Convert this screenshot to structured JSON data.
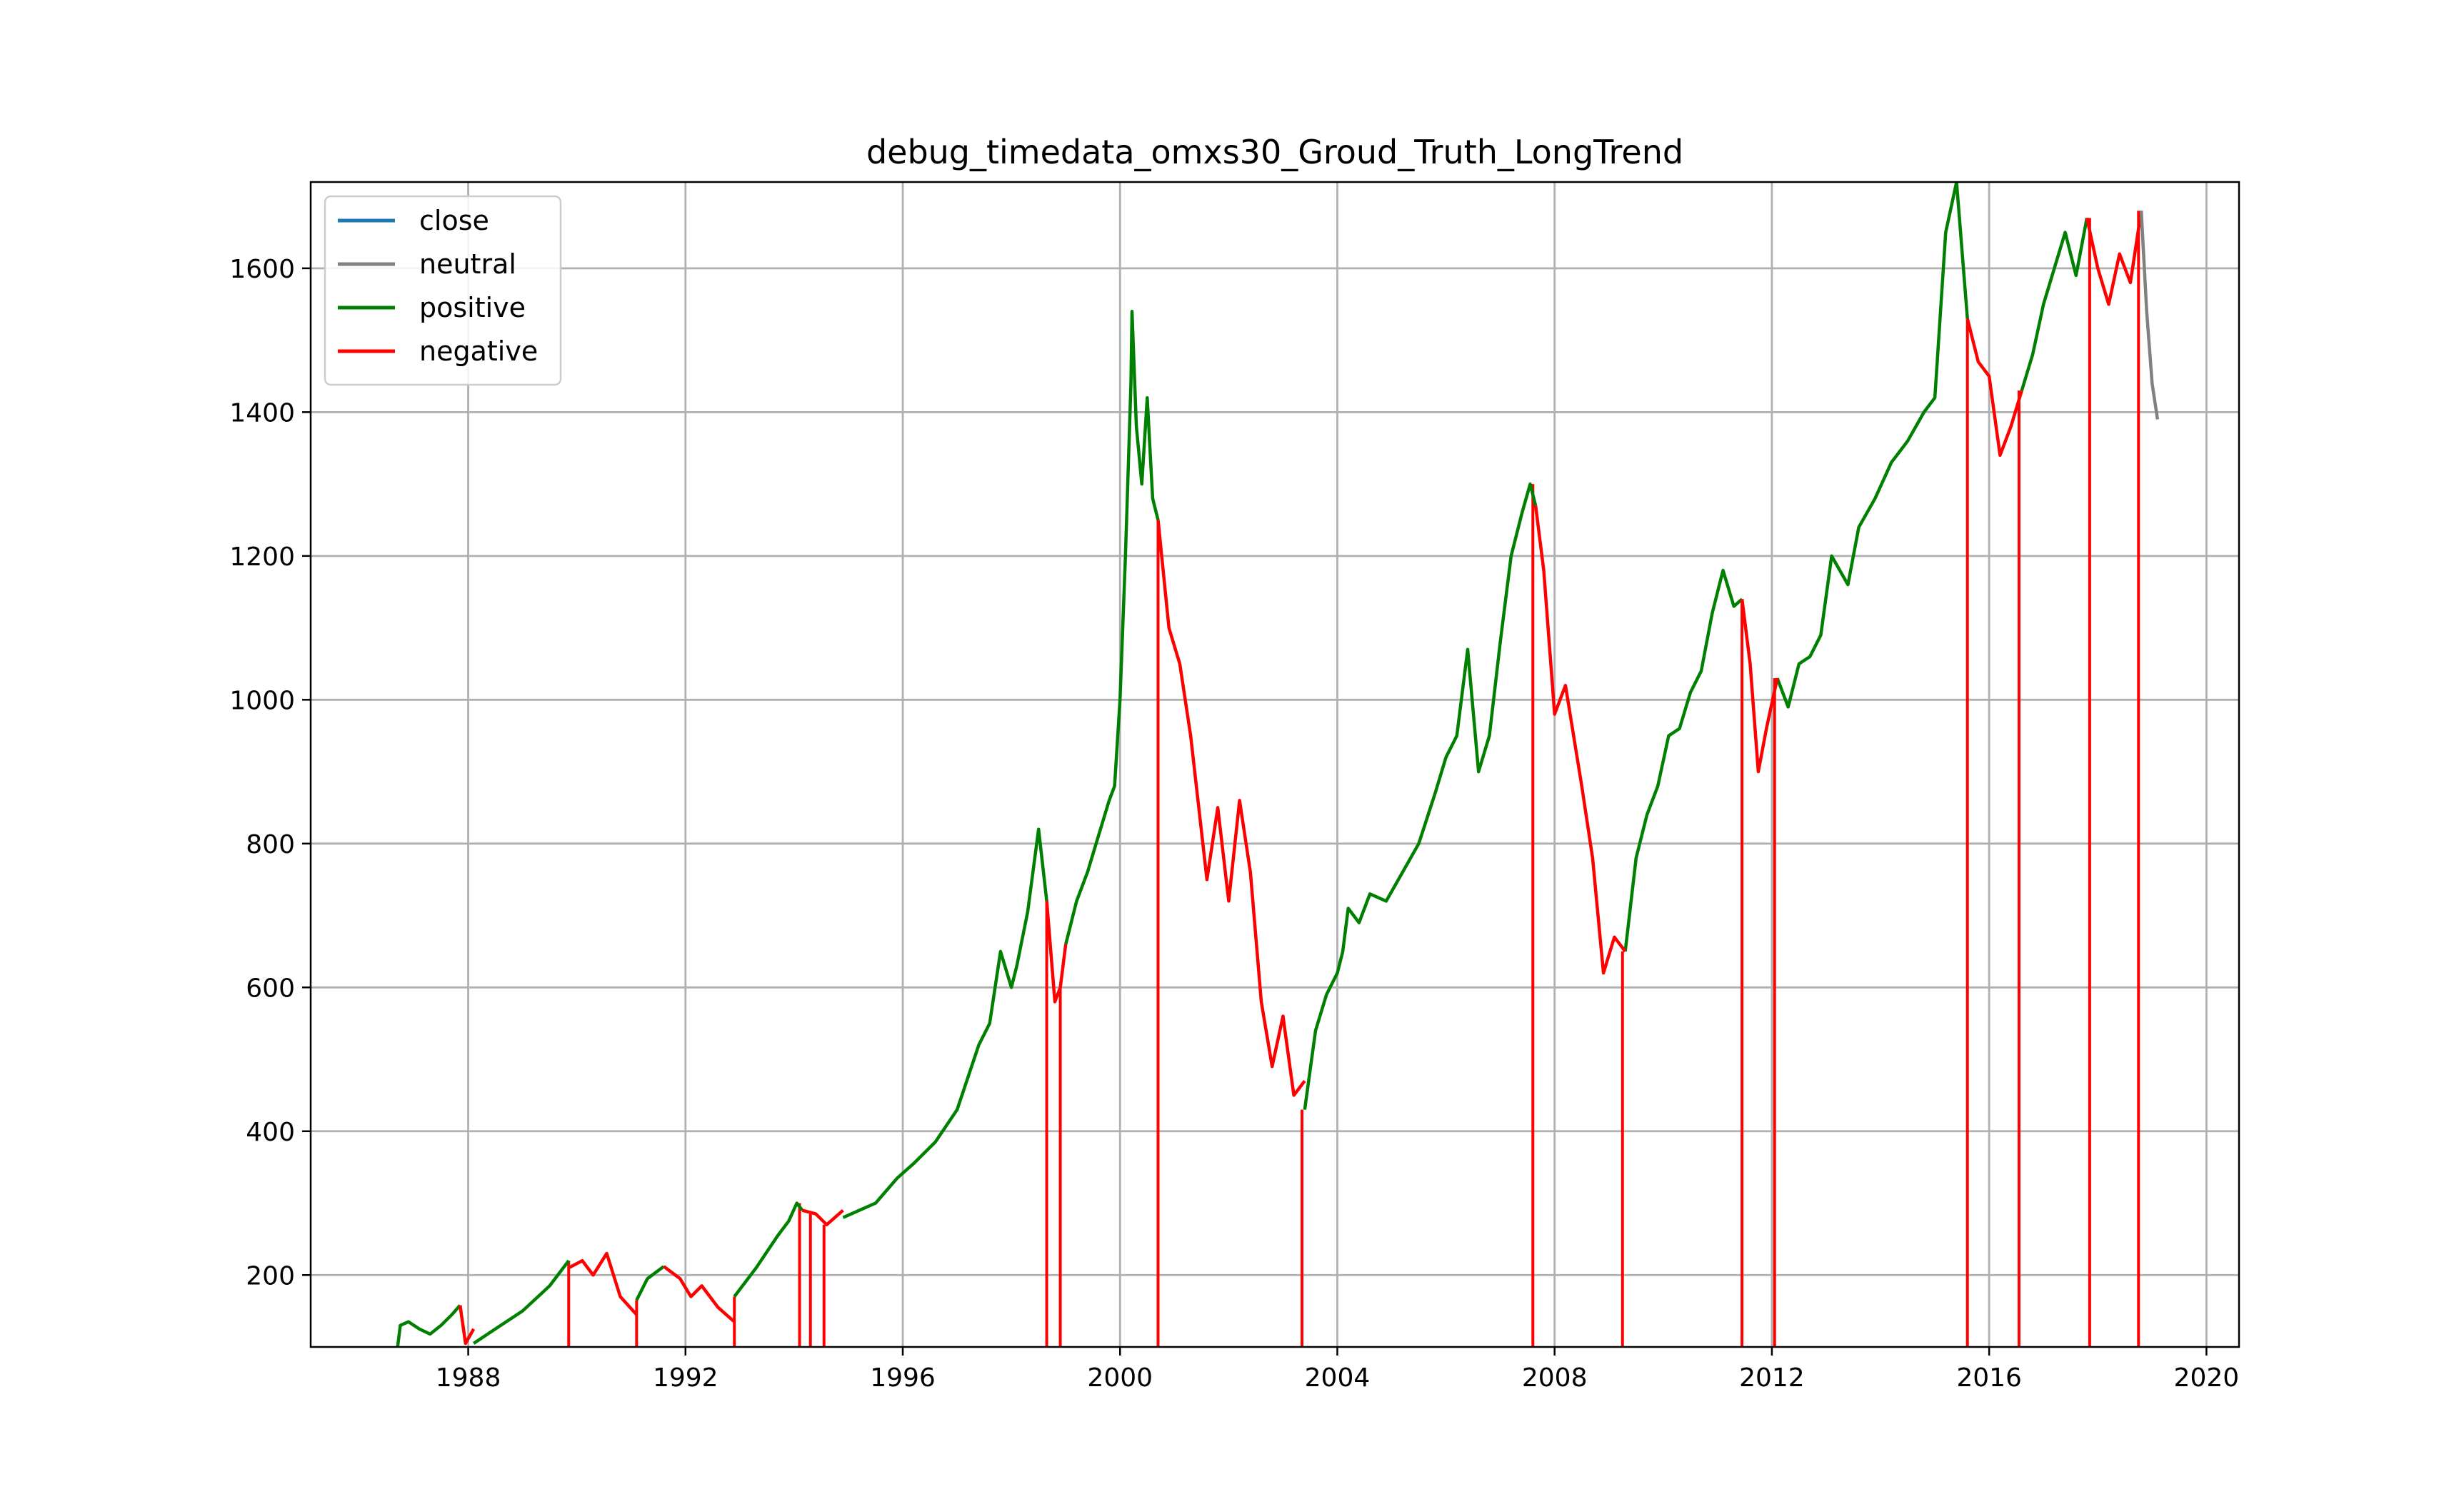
{
  "chart_data": {
    "type": "line",
    "title": "debug_timedata_omxs30_Groud_Truth_LongTrend",
    "xlabel": "",
    "ylabel": "",
    "xlim": [
      1985.1,
      2020.6
    ],
    "ylim": [
      100,
      1720
    ],
    "x_ticks": [
      1988,
      1992,
      1996,
      2000,
      2004,
      2008,
      2012,
      2016,
      2020
    ],
    "x_tick_labels": [
      "1988",
      "1992",
      "1996",
      "2000",
      "2004",
      "2008",
      "2012",
      "2016",
      "2020"
    ],
    "y_ticks": [
      200,
      400,
      600,
      800,
      1000,
      1200,
      1400,
      1600
    ],
    "y_tick_labels": [
      "200",
      "400",
      "600",
      "800",
      "1000",
      "1200",
      "1400",
      "1600"
    ],
    "grid": true,
    "legend_position": "top-left",
    "legend": [
      {
        "label": "close",
        "color": "#1f77b4"
      },
      {
        "label": "neutral",
        "color": "#808080"
      },
      {
        "label": "positive",
        "color": "#008000"
      },
      {
        "label": "negative",
        "color": "#ff0000"
      }
    ],
    "series": [
      {
        "name": "positive",
        "color": "#008000",
        "segments": [
          [
            [
              1986.7,
              100
            ],
            [
              1986.75,
              130
            ],
            [
              1986.9,
              135
            ],
            [
              1987.1,
              125
            ],
            [
              1987.3,
              118
            ],
            [
              1987.5,
              130
            ],
            [
              1987.7,
              145
            ],
            [
              1987.85,
              158
            ]
          ],
          [
            [
              1988.1,
              105
            ],
            [
              1988.5,
              125
            ],
            [
              1989.0,
              150
            ],
            [
              1989.5,
              185
            ],
            [
              1989.85,
              220
            ]
          ],
          [
            [
              1991.1,
              165
            ],
            [
              1991.3,
              195
            ],
            [
              1991.6,
              212
            ]
          ],
          [
            [
              1992.9,
              170
            ],
            [
              1993.3,
              210
            ],
            [
              1993.7,
              255
            ],
            [
              1993.9,
              275
            ],
            [
              1994.05,
              300
            ],
            [
              1994.15,
              290
            ]
          ],
          [
            [
              1994.9,
              280
            ],
            [
              1995.2,
              290
            ],
            [
              1995.5,
              300
            ],
            [
              1995.9,
              335
            ],
            [
              1996.2,
              355
            ],
            [
              1996.6,
              385
            ],
            [
              1997.0,
              430
            ],
            [
              1997.4,
              520
            ],
            [
              1997.6,
              550
            ],
            [
              1997.8,
              650
            ],
            [
              1998.0,
              600
            ],
            [
              1998.1,
              630
            ],
            [
              1998.3,
              705
            ],
            [
              1998.5,
              820
            ],
            [
              1998.65,
              720
            ]
          ],
          [
            [
              1999.0,
              660
            ],
            [
              1999.2,
              720
            ],
            [
              1999.4,
              760
            ],
            [
              1999.6,
              810
            ],
            [
              1999.8,
              860
            ],
            [
              1999.9,
              880
            ],
            [
              2000.0,
              1000
            ],
            [
              2000.1,
              1200
            ],
            [
              2000.2,
              1440
            ],
            [
              2000.22,
              1540
            ],
            [
              2000.3,
              1380
            ],
            [
              2000.4,
              1300
            ],
            [
              2000.5,
              1420
            ],
            [
              2000.6,
              1280
            ],
            [
              2000.7,
              1250
            ]
          ],
          [
            [
              2003.4,
              430
            ],
            [
              2003.6,
              540
            ],
            [
              2003.8,
              590
            ],
            [
              2004.0,
              620
            ],
            [
              2004.1,
              650
            ],
            [
              2004.2,
              710
            ],
            [
              2004.4,
              690
            ],
            [
              2004.6,
              730
            ],
            [
              2004.9,
              720
            ],
            [
              2005.2,
              760
            ],
            [
              2005.5,
              800
            ],
            [
              2005.8,
              870
            ],
            [
              2006.0,
              920
            ],
            [
              2006.2,
              950
            ],
            [
              2006.4,
              1070
            ],
            [
              2006.6,
              900
            ],
            [
              2006.8,
              950
            ],
            [
              2007.0,
              1080
            ],
            [
              2007.2,
              1200
            ],
            [
              2007.4,
              1260
            ],
            [
              2007.55,
              1300
            ],
            [
              2007.65,
              1270
            ]
          ],
          [
            [
              2009.3,
              650
            ],
            [
              2009.5,
              780
            ],
            [
              2009.7,
              840
            ],
            [
              2009.9,
              880
            ],
            [
              2010.1,
              950
            ],
            [
              2010.3,
              960
            ],
            [
              2010.5,
              1010
            ],
            [
              2010.7,
              1040
            ],
            [
              2010.9,
              1120
            ],
            [
              2011.1,
              1180
            ],
            [
              2011.3,
              1130
            ],
            [
              2011.45,
              1140
            ]
          ],
          [
            [
              2012.1,
              1030
            ],
            [
              2012.3,
              990
            ],
            [
              2012.5,
              1050
            ],
            [
              2012.7,
              1060
            ],
            [
              2012.9,
              1090
            ],
            [
              2013.1,
              1200
            ],
            [
              2013.4,
              1160
            ],
            [
              2013.6,
              1240
            ],
            [
              2013.9,
              1280
            ],
            [
              2014.2,
              1330
            ],
            [
              2014.5,
              1360
            ],
            [
              2014.8,
              1400
            ],
            [
              2015.0,
              1420
            ],
            [
              2015.2,
              1650
            ],
            [
              2015.4,
              1720
            ],
            [
              2015.6,
              1530
            ]
          ],
          [
            [
              2016.6,
              1430
            ],
            [
              2016.8,
              1480
            ],
            [
              2017.0,
              1550
            ],
            [
              2017.2,
              1600
            ],
            [
              2017.4,
              1650
            ],
            [
              2017.6,
              1590
            ],
            [
              2017.8,
              1670
            ]
          ]
        ]
      },
      {
        "name": "negative",
        "color": "#ff0000",
        "segments": [
          [
            [
              1987.85,
              158
            ],
            [
              1987.95,
              105
            ],
            [
              1988.1,
              125
            ]
          ],
          [
            [
              1989.85,
              210
            ],
            [
              1990.1,
              220
            ],
            [
              1990.3,
              200
            ],
            [
              1990.55,
              230
            ],
            [
              1990.8,
              170
            ],
            [
              1991.1,
              145
            ]
          ],
          [
            [
              1991.6,
              212
            ],
            [
              1991.9,
              195
            ],
            [
              1992.1,
              170
            ],
            [
              1992.3,
              185
            ],
            [
              1992.6,
              155
            ],
            [
              1992.9,
              135
            ]
          ],
          [
            [
              1994.15,
              290
            ],
            [
              1994.4,
              285
            ],
            [
              1994.6,
              270
            ],
            [
              1994.9,
              290
            ]
          ],
          [
            [
              1998.65,
              720
            ],
            [
              1998.8,
              580
            ],
            [
              1998.9,
              600
            ],
            [
              1999.0,
              660
            ]
          ],
          [
            [
              2000.7,
              1250
            ],
            [
              2000.9,
              1100
            ],
            [
              2001.1,
              1050
            ],
            [
              2001.3,
              950
            ],
            [
              2001.6,
              750
            ],
            [
              2001.8,
              850
            ],
            [
              2002.0,
              720
            ],
            [
              2002.2,
              860
            ],
            [
              2002.4,
              760
            ],
            [
              2002.6,
              580
            ],
            [
              2002.8,
              490
            ],
            [
              2003.0,
              560
            ],
            [
              2003.2,
              450
            ],
            [
              2003.4,
              470
            ]
          ],
          [
            [
              2007.65,
              1270
            ],
            [
              2007.8,
              1180
            ],
            [
              2008.0,
              980
            ],
            [
              2008.2,
              1020
            ],
            [
              2008.5,
              880
            ],
            [
              2008.7,
              780
            ],
            [
              2008.9,
              620
            ],
            [
              2009.1,
              670
            ],
            [
              2009.3,
              650
            ]
          ],
          [
            [
              2011.45,
              1140
            ],
            [
              2011.6,
              1050
            ],
            [
              2011.75,
              900
            ],
            [
              2011.9,
              960
            ],
            [
              2012.1,
              1030
            ]
          ],
          [
            [
              2015.6,
              1530
            ],
            [
              2015.8,
              1470
            ],
            [
              2016.0,
              1450
            ],
            [
              2016.2,
              1340
            ],
            [
              2016.4,
              1380
            ],
            [
              2016.6,
              1430
            ]
          ],
          [
            [
              2017.8,
              1670
            ],
            [
              2018.0,
              1600
            ],
            [
              2018.2,
              1550
            ],
            [
              2018.4,
              1620
            ],
            [
              2018.6,
              1580
            ],
            [
              2018.8,
              1680
            ]
          ]
        ]
      },
      {
        "name": "neutral",
        "color": "#808080",
        "segments": [
          [
            [
              2018.8,
              1680
            ],
            [
              2018.9,
              1540
            ],
            [
              2019.0,
              1440
            ],
            [
              2019.1,
              1390
            ]
          ]
        ]
      }
    ],
    "negative_drop_lines_x": [
      1989.85,
      1991.1,
      1992.9,
      1994.1,
      1994.3,
      1994.55,
      1998.65,
      1998.9,
      2000.7,
      2003.35,
      2007.6,
      2009.25,
      2011.45,
      2012.05,
      2015.6,
      2016.55,
      2017.85,
      2018.75
    ]
  }
}
